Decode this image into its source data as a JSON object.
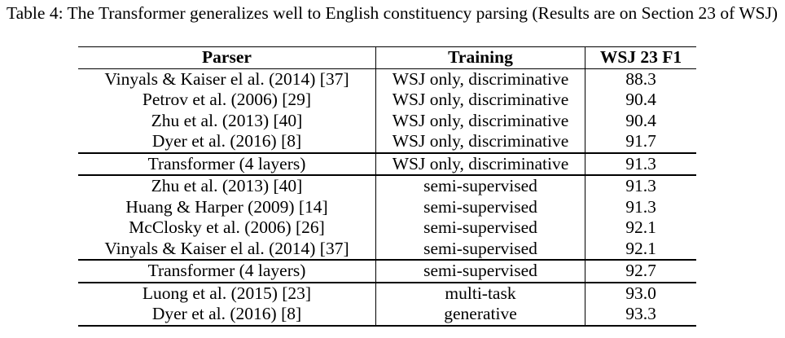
{
  "caption": "Table 4: The Transformer generalizes well to English constituency parsing (Results are on Section 23 of WSJ)",
  "columns": [
    "Parser",
    "Training",
    "WSJ 23 F1"
  ],
  "rows": [
    [
      "Vinyals & Kaiser el al. (2014) [37]",
      "WSJ only, discriminative",
      "88.3"
    ],
    [
      "Petrov et al. (2006) [29]",
      "WSJ only, discriminative",
      "90.4"
    ],
    [
      "Zhu et al. (2013) [40]",
      "WSJ only, discriminative",
      "90.4"
    ],
    [
      "Dyer et al. (2016) [8]",
      "WSJ only, discriminative",
      "91.7"
    ],
    [
      "Transformer (4 layers)",
      "WSJ only, discriminative",
      "91.3"
    ],
    [
      "Zhu et al. (2013) [40]",
      "semi-supervised",
      "91.3"
    ],
    [
      "Huang & Harper (2009) [14]",
      "semi-supervised",
      "91.3"
    ],
    [
      "McClosky et al. (2006) [26]",
      "semi-supervised",
      "92.1"
    ],
    [
      "Vinyals & Kaiser el al. (2014) [37]",
      "semi-supervised",
      "92.1"
    ],
    [
      "Transformer (4 layers)",
      "semi-supervised",
      "92.7"
    ],
    [
      "Luong et al. (2015) [23]",
      "multi-task",
      "93.0"
    ],
    [
      "Dyer et al. (2016) [8]",
      "generative",
      "93.3"
    ]
  ]
}
